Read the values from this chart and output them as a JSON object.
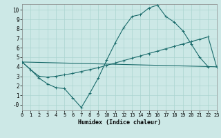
{
  "xlabel": "Humidex (Indice chaleur)",
  "bg_color": "#cce8e6",
  "grid_color": "#aad4d0",
  "line_color": "#1a6b6b",
  "xlim": [
    0,
    23
  ],
  "ylim": [
    -0.6,
    10.6
  ],
  "xticks": [
    0,
    1,
    2,
    3,
    4,
    5,
    6,
    7,
    8,
    9,
    10,
    11,
    12,
    13,
    14,
    15,
    16,
    17,
    18,
    19,
    20,
    21,
    22,
    23
  ],
  "yticks": [
    0,
    1,
    2,
    3,
    4,
    5,
    6,
    7,
    8,
    9,
    10
  ],
  "curve1_x": [
    0,
    1,
    2,
    3,
    4,
    5,
    6,
    7,
    8,
    9,
    10,
    11,
    12,
    13,
    14,
    15,
    16,
    17,
    18,
    19,
    20,
    21,
    22
  ],
  "curve1_y": [
    4.5,
    3.7,
    2.8,
    2.2,
    1.8,
    1.7,
    0.7,
    -0.3,
    1.2,
    2.8,
    4.7,
    6.5,
    8.1,
    9.3,
    9.5,
    10.2,
    10.5,
    9.3,
    8.7,
    7.8,
    6.4,
    5.0,
    4.0
  ],
  "curve2_x": [
    0,
    1,
    2,
    3,
    4,
    5,
    6,
    7,
    8,
    9,
    10,
    11,
    12,
    13,
    14,
    15,
    16,
    17,
    18,
    19,
    20,
    21,
    22,
    23
  ],
  "curve2_y": [
    4.5,
    3.7,
    3.0,
    2.9,
    3.0,
    3.15,
    3.3,
    3.5,
    3.7,
    3.9,
    4.15,
    4.4,
    4.65,
    4.9,
    5.15,
    5.4,
    5.65,
    5.9,
    6.15,
    6.4,
    6.65,
    6.9,
    7.15,
    4.0
  ],
  "curve3_x": [
    0,
    23
  ],
  "curve3_y": [
    4.5,
    4.0
  ],
  "xlabel_fontsize": 6,
  "tick_fontsize_x": 5,
  "tick_fontsize_y": 5.5
}
